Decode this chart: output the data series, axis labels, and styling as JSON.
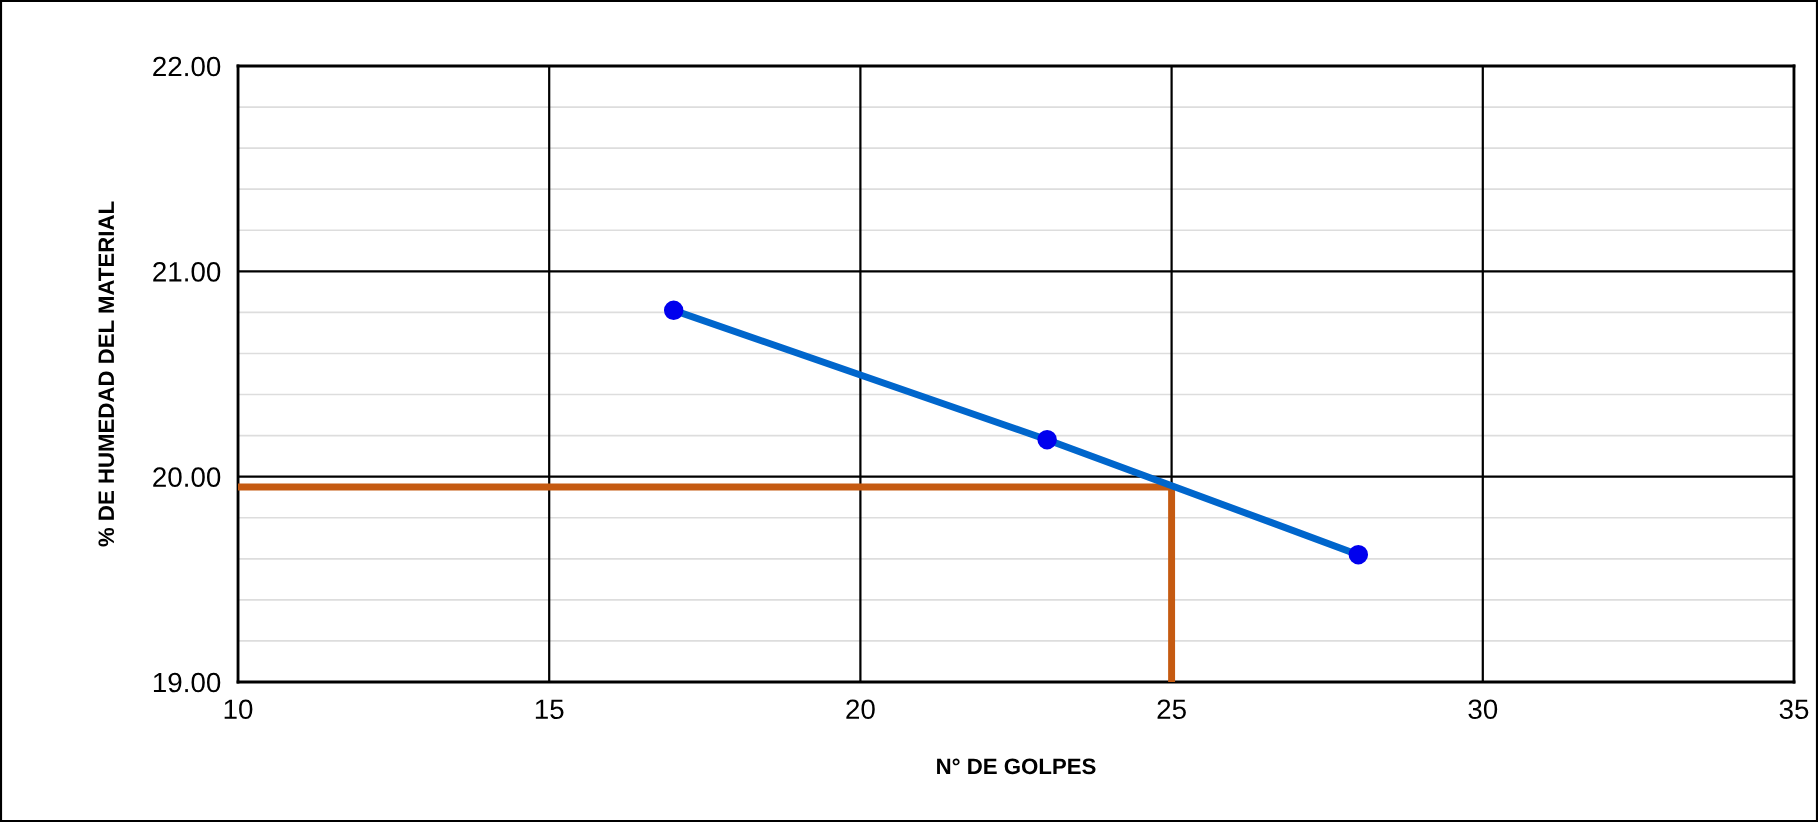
{
  "chart_data": {
    "type": "line",
    "xlabel": "N° DE GOLPES",
    "ylabel": "% DE HUMEDAD DEL MATERIAL",
    "xlim": [
      10,
      35
    ],
    "xticks": [
      10,
      15,
      20,
      25,
      30,
      35
    ],
    "ylim": [
      19,
      22
    ],
    "yticks": [
      {
        "value": 19,
        "label": "19.00"
      },
      {
        "value": 20,
        "label": "20.00"
      },
      {
        "value": 21,
        "label": "21.00"
      },
      {
        "value": 22,
        "label": "22.00"
      }
    ],
    "grid": true,
    "legend": false,
    "series": [
      {
        "color": "#c55a11",
        "x": [
          10,
          25,
          25
        ],
        "values": [
          19.95,
          19.95,
          19
        ],
        "marker": "none"
      },
      {
        "color": "#0066cc",
        "x": [
          17,
          23,
          28
        ],
        "values": [
          20.81,
          20.18,
          19.62
        ],
        "marker": "circle"
      }
    ]
  }
}
